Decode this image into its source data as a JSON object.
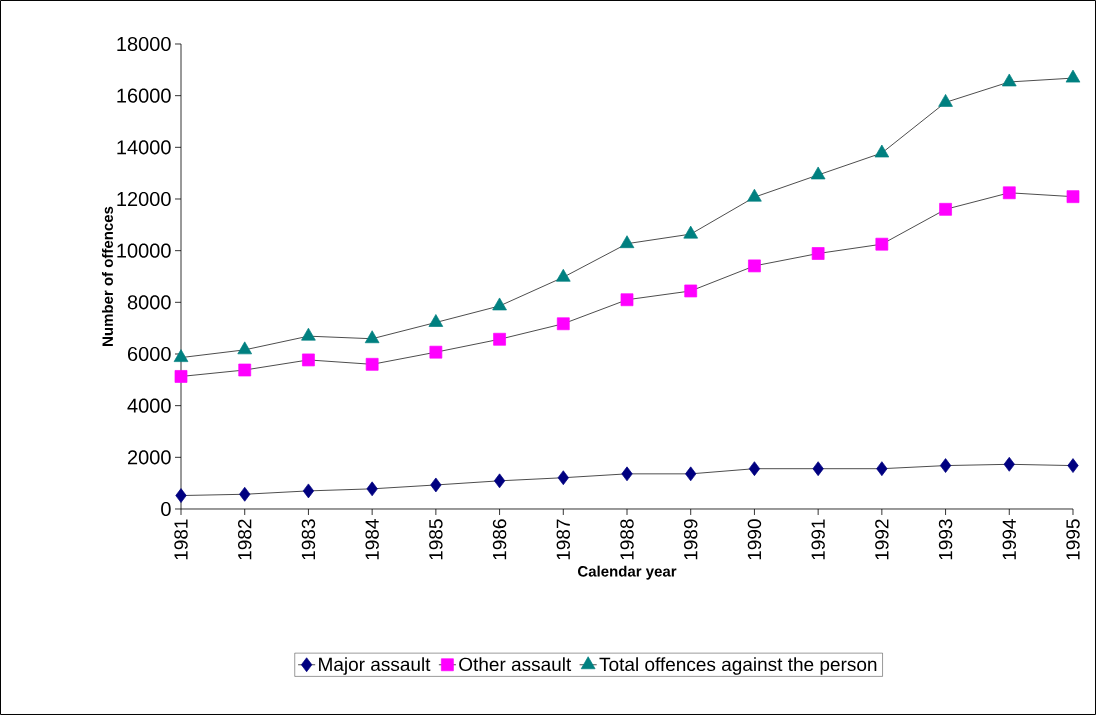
{
  "chart_data": {
    "type": "line",
    "xlabel": "Calendar year",
    "ylabel": "Number of offences",
    "categories": [
      "1981",
      "1982",
      "1983",
      "1984",
      "1985",
      "1986",
      "1987",
      "1988",
      "1989",
      "1990",
      "1991",
      "1992",
      "1993",
      "1994",
      "1995"
    ],
    "series": [
      {
        "name": "Major assault",
        "color": "#000080",
        "marker": "diamond",
        "values": [
          520,
          570,
          700,
          780,
          930,
          1090,
          1210,
          1360,
          1360,
          1560,
          1560,
          1560,
          1680,
          1730,
          1680
        ]
      },
      {
        "name": "Other assault",
        "color": "#ff00ff",
        "marker": "square",
        "values": [
          5130,
          5380,
          5770,
          5600,
          6070,
          6570,
          7170,
          8100,
          8440,
          9410,
          9890,
          10250,
          11600,
          12240,
          12090
        ]
      },
      {
        "name": "Total offences against the person",
        "color": "#008080",
        "marker": "triangle",
        "values": [
          5860,
          6160,
          6690,
          6590,
          7220,
          7860,
          8970,
          10270,
          10640,
          12070,
          12930,
          13780,
          15740,
          16530,
          16680
        ]
      }
    ],
    "ylim": [
      0,
      18000
    ],
    "yticks": [
      0,
      2000,
      4000,
      6000,
      8000,
      10000,
      12000,
      14000,
      16000,
      18000
    ],
    "legend": "bottom",
    "line_style": "solid"
  }
}
